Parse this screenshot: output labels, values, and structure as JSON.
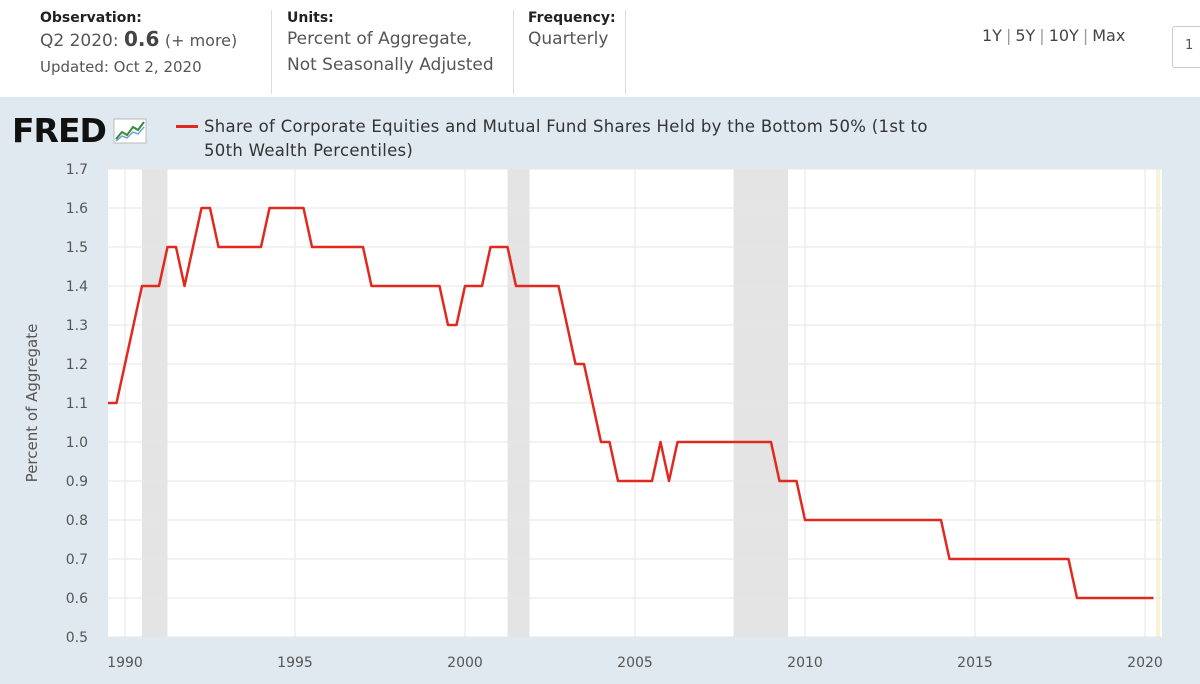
{
  "header": {
    "observation_label": "Observation:",
    "observation_period": "Q2 2020:",
    "observation_value": "0.6",
    "observation_more": "(+ more)",
    "updated": "Updated: Oct 2, 2020",
    "units_label": "Units:",
    "units_line1": "Percent of Aggregate,",
    "units_line2": "Not Seasonally Adjusted",
    "frequency_label": "Frequency:",
    "frequency_value": "Quarterly",
    "ranges": [
      "1Y",
      "5Y",
      "10Y",
      "Max"
    ],
    "edge_box_text": "1"
  },
  "logo": {
    "text": "FRED"
  },
  "colors": {
    "line": "#e0291f",
    "recession": "#e4e4e4",
    "plot_bg": "#ffffff",
    "page_bg": "#e1e9f0"
  },
  "chart_data": {
    "type": "line",
    "series_label_line1": "Share of Corporate Equities and Mutual Fund Shares Held by the Bottom 50% (1st to",
    "series_label_line2": "50th Wealth Percentiles)",
    "ylabel": "Percent of Aggregate",
    "ylim": [
      0.5,
      1.7
    ],
    "yticks": [
      "0.5",
      "0.6",
      "0.7",
      "0.8",
      "0.9",
      "1.0",
      "1.1",
      "1.2",
      "1.3",
      "1.4",
      "1.5",
      "1.6",
      "1.7"
    ],
    "xlim": [
      1989.5,
      2020.5
    ],
    "xticks": [
      "1990",
      "1995",
      "2000",
      "2005",
      "2010",
      "2015",
      "2020"
    ],
    "grid": true,
    "recessions": [
      [
        1990.5,
        1991.25
      ],
      [
        2001.25,
        2001.9
      ],
      [
        2007.9,
        2009.5
      ]
    ],
    "x": [
      1989.5,
      1989.75,
      1990.0,
      1990.25,
      1990.5,
      1990.75,
      1991.0,
      1991.25,
      1991.5,
      1991.75,
      1992.0,
      1992.25,
      1992.5,
      1992.75,
      1993.0,
      1993.25,
      1993.5,
      1993.75,
      1994.0,
      1994.25,
      1994.5,
      1994.75,
      1995.0,
      1995.25,
      1995.5,
      1995.75,
      1996.0,
      1996.25,
      1996.5,
      1996.75,
      1997.0,
      1997.25,
      1997.5,
      1997.75,
      1998.0,
      1998.25,
      1998.5,
      1998.75,
      1999.0,
      1999.25,
      1999.5,
      1999.75,
      2000.0,
      2000.25,
      2000.5,
      2000.75,
      2001.0,
      2001.25,
      2001.5,
      2001.75,
      2002.0,
      2002.25,
      2002.5,
      2002.75,
      2003.0,
      2003.25,
      2003.5,
      2003.75,
      2004.0,
      2004.25,
      2004.5,
      2004.75,
      2005.0,
      2005.25,
      2005.5,
      2005.75,
      2006.0,
      2006.25,
      2006.5,
      2006.75,
      2007.0,
      2007.25,
      2007.5,
      2007.75,
      2008.0,
      2008.25,
      2008.5,
      2008.75,
      2009.0,
      2009.25,
      2009.5,
      2009.75,
      2010.0,
      2010.25,
      2010.5,
      2010.75,
      2011.0,
      2011.25,
      2011.5,
      2011.75,
      2012.0,
      2012.25,
      2012.5,
      2012.75,
      2013.0,
      2013.25,
      2013.5,
      2013.75,
      2014.0,
      2014.25,
      2014.5,
      2014.75,
      2015.0,
      2015.25,
      2015.5,
      2015.75,
      2016.0,
      2016.25,
      2016.5,
      2016.75,
      2017.0,
      2017.25,
      2017.5,
      2017.75,
      2018.0,
      2018.25,
      2018.5,
      2018.75,
      2019.0,
      2019.25,
      2019.5,
      2019.75,
      2020.0,
      2020.25
    ],
    "values": [
      1.1,
      1.1,
      1.2,
      1.3,
      1.4,
      1.4,
      1.4,
      1.5,
      1.5,
      1.4,
      1.5,
      1.6,
      1.6,
      1.5,
      1.5,
      1.5,
      1.5,
      1.5,
      1.5,
      1.6,
      1.6,
      1.6,
      1.6,
      1.6,
      1.5,
      1.5,
      1.5,
      1.5,
      1.5,
      1.5,
      1.5,
      1.4,
      1.4,
      1.4,
      1.4,
      1.4,
      1.4,
      1.4,
      1.4,
      1.4,
      1.3,
      1.3,
      1.4,
      1.4,
      1.4,
      1.5,
      1.5,
      1.5,
      1.4,
      1.4,
      1.4,
      1.4,
      1.4,
      1.4,
      1.3,
      1.2,
      1.2,
      1.1,
      1.0,
      1.0,
      0.9,
      0.9,
      0.9,
      0.9,
      0.9,
      1.0,
      0.9,
      1.0,
      1.0,
      1.0,
      1.0,
      1.0,
      1.0,
      1.0,
      1.0,
      1.0,
      1.0,
      1.0,
      1.0,
      0.9,
      0.9,
      0.9,
      0.8,
      0.8,
      0.8,
      0.8,
      0.8,
      0.8,
      0.8,
      0.8,
      0.8,
      0.8,
      0.8,
      0.8,
      0.8,
      0.8,
      0.8,
      0.8,
      0.8,
      0.7,
      0.7,
      0.7,
      0.7,
      0.7,
      0.7,
      0.7,
      0.7,
      0.7,
      0.7,
      0.7,
      0.7,
      0.7,
      0.7,
      0.7,
      0.6,
      0.6,
      0.6,
      0.6,
      0.6,
      0.6,
      0.6,
      0.6,
      0.6,
      0.6
    ]
  }
}
